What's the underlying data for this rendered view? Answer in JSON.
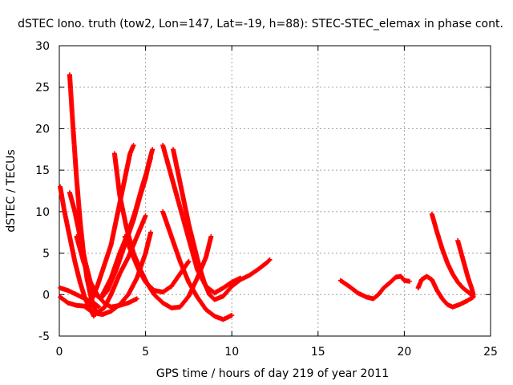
{
  "chart_data": {
    "type": "scatter",
    "title": "dSTEC Iono. truth (tow2, Lon=147, Lat=-19, h=88): STEC-STEC_elemax in phase cont.",
    "xlabel": "GPS time / hours of day 219 of year 2011",
    "ylabel": "dSTEC  / TECUs",
    "xlim": [
      0,
      25
    ],
    "ylim": [
      -5,
      30
    ],
    "xticks": [
      "0",
      "5",
      "10",
      "15",
      "20",
      "25"
    ],
    "yticks": [
      "-5",
      "0",
      "5",
      "10",
      "15",
      "20",
      "25",
      "30"
    ],
    "grid": true,
    "legend": "none",
    "marker": "+",
    "color": "#ff0000",
    "series": [
      {
        "points": [
          [
            0.05,
            13
          ],
          [
            0.3,
            10
          ],
          [
            0.6,
            7
          ],
          [
            0.9,
            4
          ],
          [
            1.2,
            1.5
          ],
          [
            1.5,
            -0.5
          ],
          [
            1.8,
            -1.8
          ],
          [
            2.0,
            -2.6
          ]
        ]
      },
      {
        "points": [
          [
            0.05,
            0.8
          ],
          [
            0.5,
            0.5
          ],
          [
            1.0,
            0
          ],
          [
            1.5,
            -0.5
          ],
          [
            2.0,
            -1.0
          ],
          [
            2.3,
            -1.5
          ]
        ]
      },
      {
        "points": [
          [
            0.05,
            -0.3
          ],
          [
            0.5,
            -1.0
          ],
          [
            1.0,
            -1.3
          ],
          [
            1.5,
            -1.4
          ],
          [
            2.0,
            -1.2
          ]
        ]
      },
      {
        "points": [
          [
            0.6,
            26.5
          ],
          [
            0.8,
            20
          ],
          [
            1.0,
            14
          ],
          [
            1.2,
            9
          ],
          [
            1.4,
            5
          ],
          [
            1.6,
            2
          ],
          [
            1.8,
            0
          ],
          [
            2.0,
            -1.5
          ],
          [
            2.2,
            -2.2
          ],
          [
            2.6,
            -1.6
          ],
          [
            3.0,
            0
          ],
          [
            3.5,
            2.5
          ],
          [
            4.0,
            4.5
          ],
          [
            4.5,
            7
          ],
          [
            5.0,
            9.5
          ]
        ]
      },
      {
        "points": [
          [
            0.6,
            12.3
          ],
          [
            0.9,
            10
          ],
          [
            1.2,
            7
          ],
          [
            1.5,
            4
          ],
          [
            1.8,
            1.5
          ],
          [
            2.1,
            0
          ],
          [
            2.4,
            -0.5
          ],
          [
            2.8,
            0.5
          ],
          [
            3.3,
            3
          ],
          [
            3.8,
            6
          ],
          [
            4.3,
            9
          ],
          [
            4.7,
            12
          ],
          [
            5.0,
            14
          ],
          [
            5.2,
            16
          ],
          [
            5.4,
            17.5
          ]
        ]
      },
      {
        "points": [
          [
            1.0,
            7
          ],
          [
            1.4,
            4
          ],
          [
            1.8,
            1.5
          ],
          [
            2.2,
            0
          ],
          [
            2.6,
            -1
          ],
          [
            3.0,
            -1.5
          ],
          [
            3.5,
            -1.3
          ],
          [
            4.0,
            -1
          ],
          [
            4.5,
            -0.5
          ]
        ]
      },
      {
        "points": [
          [
            1.5,
            -1.5
          ],
          [
            2.0,
            -2.2
          ],
          [
            2.5,
            -2.4
          ],
          [
            3.0,
            -2.0
          ],
          [
            3.5,
            -1.2
          ],
          [
            4.0,
            0
          ],
          [
            4.5,
            2
          ],
          [
            5.0,
            5
          ],
          [
            5.3,
            7.5
          ]
        ]
      },
      {
        "points": [
          [
            1.8,
            -1
          ],
          [
            2.2,
            1
          ],
          [
            2.6,
            3.5
          ],
          [
            3.0,
            6
          ],
          [
            3.3,
            9
          ],
          [
            3.6,
            12
          ],
          [
            3.9,
            15
          ],
          [
            4.1,
            17
          ],
          [
            4.3,
            18
          ]
        ]
      },
      {
        "points": [
          [
            2.5,
            0
          ],
          [
            3.0,
            2
          ],
          [
            3.5,
            5
          ],
          [
            4.0,
            7.5
          ],
          [
            4.4,
            10
          ],
          [
            4.8,
            13
          ],
          [
            5.1,
            15
          ],
          [
            5.3,
            16.5
          ]
        ]
      },
      {
        "points": [
          [
            3.2,
            17
          ],
          [
            3.5,
            12
          ],
          [
            3.9,
            8
          ],
          [
            4.3,
            5
          ],
          [
            4.7,
            3
          ],
          [
            5.1,
            1.3
          ],
          [
            5.5,
            0
          ],
          [
            6.0,
            -1.0
          ],
          [
            6.5,
            -1.6
          ],
          [
            7.0,
            -1.5
          ],
          [
            7.5,
            -0.2
          ],
          [
            8.0,
            2
          ],
          [
            8.5,
            4.5
          ],
          [
            8.8,
            7
          ]
        ]
      },
      {
        "points": [
          [
            3.8,
            7
          ],
          [
            4.2,
            5
          ],
          [
            4.6,
            3
          ],
          [
            5.0,
            1.5
          ],
          [
            5.5,
            0.5
          ],
          [
            6.0,
            0.3
          ],
          [
            6.5,
            1
          ],
          [
            7.0,
            2.5
          ],
          [
            7.5,
            4
          ]
        ]
      },
      {
        "points": [
          [
            6.0,
            18
          ],
          [
            6.4,
            15
          ],
          [
            6.8,
            12
          ],
          [
            7.2,
            9
          ],
          [
            7.6,
            6
          ],
          [
            8.0,
            3
          ],
          [
            8.5,
            1
          ],
          [
            9.0,
            0.2
          ],
          [
            9.5,
            0.8
          ],
          [
            10.0,
            1.5
          ],
          [
            10.5,
            2.0
          ]
        ]
      },
      {
        "points": [
          [
            6.6,
            17.5
          ],
          [
            6.9,
            14.5
          ],
          [
            7.2,
            11.5
          ],
          [
            7.5,
            8.5
          ],
          [
            7.8,
            6
          ],
          [
            8.1,
            3.5
          ],
          [
            8.4,
            1.5
          ],
          [
            8.7,
            0
          ],
          [
            9.0,
            -0.6
          ],
          [
            9.5,
            -0.2
          ],
          [
            10.0,
            1
          ],
          [
            10.5,
            1.8
          ],
          [
            11.0,
            2.3
          ],
          [
            11.5,
            3
          ],
          [
            12.0,
            3.8
          ],
          [
            12.2,
            4.2
          ]
        ]
      },
      {
        "points": [
          [
            6.0,
            10
          ],
          [
            6.5,
            7
          ],
          [
            7.0,
            4
          ],
          [
            7.5,
            1.5
          ],
          [
            8.0,
            -0.3
          ],
          [
            8.5,
            -1.8
          ],
          [
            9.0,
            -2.6
          ],
          [
            9.5,
            -3.0
          ],
          [
            10.0,
            -2.5
          ]
        ]
      },
      {
        "points": [
          [
            16.3,
            1.7
          ],
          [
            16.8,
            1.0
          ],
          [
            17.3,
            0.2
          ],
          [
            17.8,
            -0.3
          ],
          [
            18.2,
            -0.5
          ],
          [
            18.5,
            0
          ],
          [
            18.8,
            0.8
          ],
          [
            19.2,
            1.5
          ],
          [
            19.5,
            2.1
          ],
          [
            19.8,
            2.2
          ],
          [
            20.0,
            1.7
          ],
          [
            20.3,
            1.6
          ]
        ]
      },
      {
        "points": [
          [
            20.8,
            0.8
          ],
          [
            21.0,
            1.8
          ],
          [
            21.3,
            2.2
          ],
          [
            21.6,
            1.8
          ],
          [
            21.9,
            0.5
          ],
          [
            22.2,
            -0.5
          ],
          [
            22.5,
            -1.2
          ],
          [
            22.8,
            -1.5
          ],
          [
            23.2,
            -1.2
          ],
          [
            23.6,
            -0.8
          ],
          [
            24.0,
            -0.3
          ]
        ]
      },
      {
        "points": [
          [
            21.6,
            9.7
          ],
          [
            21.9,
            7.5
          ],
          [
            22.2,
            5.5
          ],
          [
            22.5,
            3.8
          ],
          [
            22.8,
            2.5
          ],
          [
            23.1,
            1.5
          ],
          [
            23.4,
            0.8
          ],
          [
            23.7,
            0.3
          ],
          [
            24.0,
            -0.2
          ]
        ]
      },
      {
        "points": [
          [
            23.1,
            6.5
          ],
          [
            23.3,
            5
          ],
          [
            23.5,
            3.5
          ],
          [
            23.7,
            2
          ],
          [
            23.9,
            0.8
          ],
          [
            24.0,
            0
          ]
        ]
      }
    ]
  }
}
